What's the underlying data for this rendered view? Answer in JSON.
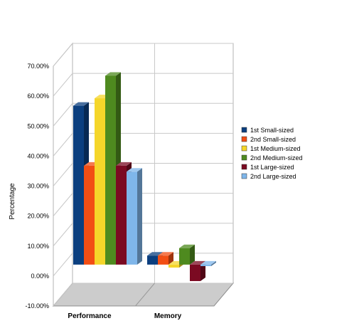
{
  "chart_data": {
    "type": "bar",
    "style": "3d-clustered-column",
    "ylabel": "Percentage",
    "ylim": [
      -10,
      70
    ],
    "yticks": [
      "-10.00%",
      "0.00%",
      "10.00%",
      "20.00%",
      "30.00%",
      "40.00%",
      "50.00%",
      "60.00%",
      "70.00%"
    ],
    "categories": [
      "Performance",
      "Memory"
    ],
    "series": [
      {
        "name": "1st Small-sized",
        "color": "#0b3f7f",
        "values": [
          53.0,
          3.0
        ]
      },
      {
        "name": "2nd Small-sized",
        "color": "#f24e14",
        "values": [
          33.0,
          3.0
        ]
      },
      {
        "name": "1st Medium-sized",
        "color": "#f5d62a",
        "values": [
          55.5,
          -1.0
        ]
      },
      {
        "name": "2nd Medium-sized",
        "color": "#4e8a1f",
        "values": [
          63.0,
          5.5
        ]
      },
      {
        "name": "1st Large-sized",
        "color": "#7b0a22",
        "values": [
          33.0,
          -5.5
        ]
      },
      {
        "name": "2nd Large-sized",
        "color": "#7fb6ea",
        "values": [
          31.0,
          -0.5
        ]
      }
    ],
    "grid": true,
    "legend": "right"
  }
}
